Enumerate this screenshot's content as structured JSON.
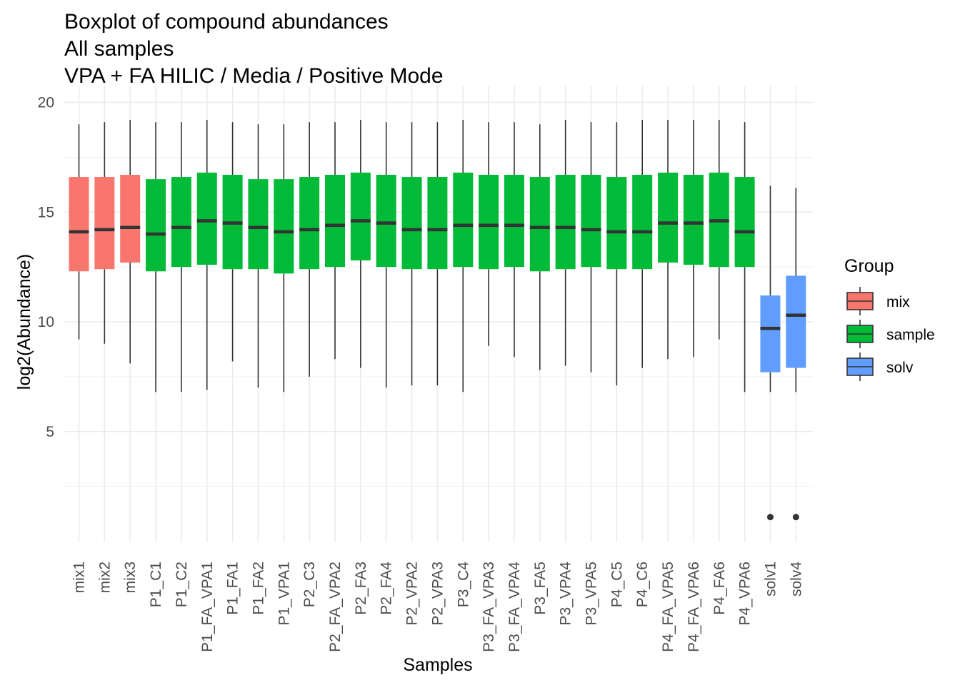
{
  "chart_data": {
    "type": "boxplot",
    "title": [
      "Boxplot of compound abundances",
      "All samples",
      "VPA + FA HILIC / Media / Positive Mode"
    ],
    "xlabel": "Samples",
    "ylabel": "log2(Abundance)",
    "ylim": [
      0,
      20
    ],
    "yticks": [
      5,
      10,
      15,
      20
    ],
    "grid": true,
    "legend": {
      "title": "Group",
      "position": "right",
      "entries": [
        {
          "name": "mix",
          "color": "#F8766D"
        },
        {
          "name": "sample",
          "color": "#00BA38"
        },
        {
          "name": "solv",
          "color": "#619CFF"
        }
      ]
    },
    "boxes": [
      {
        "label": "mix1",
        "group": "mix",
        "min": 9.2,
        "q1": 12.3,
        "median": 14.1,
        "q3": 16.6,
        "max": 19.0,
        "outliers": []
      },
      {
        "label": "mix2",
        "group": "mix",
        "min": 9.0,
        "q1": 12.4,
        "median": 14.2,
        "q3": 16.6,
        "max": 19.1,
        "outliers": []
      },
      {
        "label": "mix3",
        "group": "mix",
        "min": 8.1,
        "q1": 12.7,
        "median": 14.3,
        "q3": 16.7,
        "max": 19.2,
        "outliers": []
      },
      {
        "label": "P1_C1",
        "group": "sample",
        "min": 6.8,
        "q1": 12.3,
        "median": 14.0,
        "q3": 16.5,
        "max": 19.1,
        "outliers": []
      },
      {
        "label": "P1_C2",
        "group": "sample",
        "min": 6.8,
        "q1": 12.5,
        "median": 14.3,
        "q3": 16.6,
        "max": 19.1,
        "outliers": []
      },
      {
        "label": "P1_FA_VPA1",
        "group": "sample",
        "min": 6.9,
        "q1": 12.6,
        "median": 14.6,
        "q3": 16.8,
        "max": 19.2,
        "outliers": []
      },
      {
        "label": "P1_FA1",
        "group": "sample",
        "min": 8.2,
        "q1": 12.4,
        "median": 14.5,
        "q3": 16.7,
        "max": 19.1,
        "outliers": []
      },
      {
        "label": "P1_FA2",
        "group": "sample",
        "min": 7.0,
        "q1": 12.4,
        "median": 14.3,
        "q3": 16.5,
        "max": 19.0,
        "outliers": []
      },
      {
        "label": "P1_VPA1",
        "group": "sample",
        "min": 6.8,
        "q1": 12.2,
        "median": 14.1,
        "q3": 16.5,
        "max": 19.0,
        "outliers": []
      },
      {
        "label": "P2_C3",
        "group": "sample",
        "min": 7.5,
        "q1": 12.4,
        "median": 14.2,
        "q3": 16.6,
        "max": 19.1,
        "outliers": []
      },
      {
        "label": "P2_FA_VPA2",
        "group": "sample",
        "min": 8.3,
        "q1": 12.5,
        "median": 14.4,
        "q3": 16.7,
        "max": 19.1,
        "outliers": []
      },
      {
        "label": "P2_FA3",
        "group": "sample",
        "min": 7.9,
        "q1": 12.8,
        "median": 14.6,
        "q3": 16.8,
        "max": 19.2,
        "outliers": []
      },
      {
        "label": "P2_FA4",
        "group": "sample",
        "min": 7.0,
        "q1": 12.5,
        "median": 14.5,
        "q3": 16.7,
        "max": 19.1,
        "outliers": []
      },
      {
        "label": "P2_VPA2",
        "group": "sample",
        "min": 7.1,
        "q1": 12.4,
        "median": 14.2,
        "q3": 16.6,
        "max": 19.1,
        "outliers": []
      },
      {
        "label": "P2_VPA3",
        "group": "sample",
        "min": 7.1,
        "q1": 12.4,
        "median": 14.2,
        "q3": 16.6,
        "max": 19.1,
        "outliers": []
      },
      {
        "label": "P3_C4",
        "group": "sample",
        "min": 6.8,
        "q1": 12.5,
        "median": 14.4,
        "q3": 16.8,
        "max": 19.2,
        "outliers": []
      },
      {
        "label": "P3_FA_VPA3",
        "group": "sample",
        "min": 8.9,
        "q1": 12.4,
        "median": 14.4,
        "q3": 16.7,
        "max": 19.1,
        "outliers": []
      },
      {
        "label": "P3_FA_VPA4",
        "group": "sample",
        "min": 8.4,
        "q1": 12.5,
        "median": 14.4,
        "q3": 16.7,
        "max": 19.1,
        "outliers": []
      },
      {
        "label": "P3_FA5",
        "group": "sample",
        "min": 7.8,
        "q1": 12.3,
        "median": 14.3,
        "q3": 16.6,
        "max": 19.0,
        "outliers": []
      },
      {
        "label": "P3_VPA4",
        "group": "sample",
        "min": 8.0,
        "q1": 12.4,
        "median": 14.3,
        "q3": 16.7,
        "max": 19.2,
        "outliers": []
      },
      {
        "label": "P3_VPA5",
        "group": "sample",
        "min": 7.7,
        "q1": 12.5,
        "median": 14.2,
        "q3": 16.7,
        "max": 19.1,
        "outliers": []
      },
      {
        "label": "P4_C5",
        "group": "sample",
        "min": 7.1,
        "q1": 12.4,
        "median": 14.1,
        "q3": 16.6,
        "max": 19.1,
        "outliers": []
      },
      {
        "label": "P4_C6",
        "group": "sample",
        "min": 7.9,
        "q1": 12.4,
        "median": 14.1,
        "q3": 16.7,
        "max": 19.2,
        "outliers": []
      },
      {
        "label": "P4_FA_VPA5",
        "group": "sample",
        "min": 8.3,
        "q1": 12.7,
        "median": 14.5,
        "q3": 16.8,
        "max": 19.2,
        "outliers": []
      },
      {
        "label": "P4_FA_VPA6",
        "group": "sample",
        "min": 8.4,
        "q1": 12.6,
        "median": 14.5,
        "q3": 16.7,
        "max": 19.2,
        "outliers": []
      },
      {
        "label": "P4_FA6",
        "group": "sample",
        "min": 9.2,
        "q1": 12.5,
        "median": 14.6,
        "q3": 16.8,
        "max": 19.2,
        "outliers": []
      },
      {
        "label": "P4_VPA6",
        "group": "sample",
        "min": 6.8,
        "q1": 12.5,
        "median": 14.1,
        "q3": 16.6,
        "max": 19.1,
        "outliers": []
      },
      {
        "label": "solv1",
        "group": "solv",
        "min": 6.8,
        "q1": 7.7,
        "median": 9.7,
        "q3": 11.2,
        "max": 16.2,
        "outliers": [
          1.1
        ]
      },
      {
        "label": "solv4",
        "group": "solv",
        "min": 6.8,
        "q1": 7.9,
        "median": 10.3,
        "q3": 12.1,
        "max": 16.1,
        "outliers": [
          1.1
        ]
      }
    ]
  }
}
